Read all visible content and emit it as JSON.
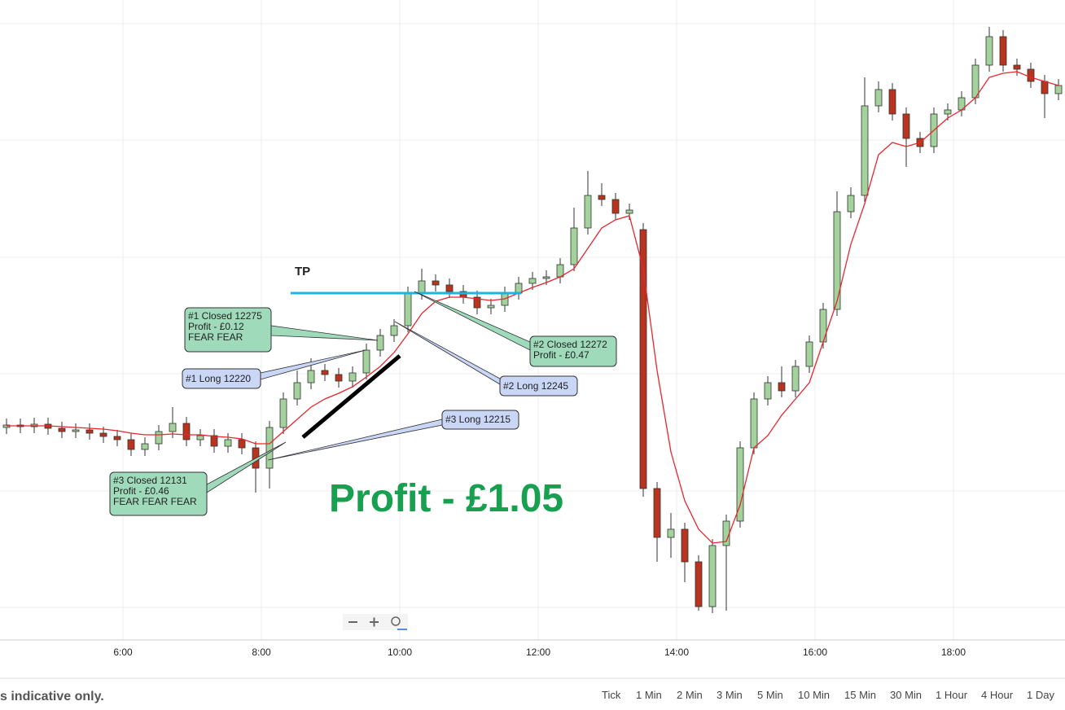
{
  "chart_data": {
    "type": "candlestick",
    "ylim": [
      0,
      785
    ],
    "time_labels": [
      "6:00",
      "8:00",
      "10:00",
      "12:00",
      "14:00",
      "16:00",
      "18:00"
    ],
    "open": [
      260,
      263,
      261,
      264,
      259,
      255,
      257,
      253,
      249,
      245,
      233,
      240,
      255,
      265,
      245,
      250,
      237,
      245,
      235,
      210,
      260,
      295,
      315,
      330,
      325,
      317,
      327,
      355,
      373,
      385,
      425,
      440,
      435,
      427,
      420,
      407,
      410,
      425,
      437,
      443,
      445,
      460,
      505,
      545,
      540,
      523,
      503,
      185,
      125,
      135,
      95,
      40,
      115,
      145,
      235,
      295,
      315,
      305,
      335,
      365,
      405,
      525,
      545,
      655,
      675,
      645,
      615,
      605,
      645,
      650,
      665,
      705,
      740,
      705,
      700,
      685,
      670
    ],
    "high": [
      271,
      271,
      272,
      272,
      267,
      265,
      265,
      261,
      257,
      253,
      248,
      263,
      285,
      273,
      258,
      258,
      253,
      253,
      243,
      268,
      303,
      330,
      345,
      338,
      333,
      335,
      363,
      381,
      393,
      433,
      455,
      448,
      443,
      435,
      428,
      418,
      433,
      445,
      451,
      453,
      468,
      530,
      575,
      560,
      548,
      535,
      511,
      193,
      155,
      143,
      103,
      123,
      153,
      243,
      303,
      323,
      335,
      343,
      373,
      413,
      550,
      555,
      690,
      685,
      683,
      653,
      623,
      653,
      658,
      673,
      713,
      752,
      748,
      713,
      708,
      693,
      688
    ],
    "low": [
      252,
      253,
      253,
      251,
      247,
      247,
      245,
      241,
      237,
      225,
      225,
      232,
      247,
      237,
      237,
      229,
      229,
      227,
      180,
      185,
      252,
      287,
      307,
      317,
      309,
      309,
      319,
      347,
      365,
      377,
      417,
      427,
      419,
      412,
      399,
      399,
      402,
      417,
      429,
      435,
      437,
      452,
      497,
      532,
      515,
      515,
      175,
      95,
      100,
      70,
      35,
      32,
      35,
      137,
      227,
      287,
      297,
      297,
      327,
      357,
      397,
      517,
      537,
      647,
      637,
      580,
      597,
      597,
      637,
      642,
      657,
      697,
      697,
      692,
      677,
      640,
      662
    ],
    "close": [
      263,
      261,
      264,
      259,
      255,
      257,
      253,
      249,
      245,
      233,
      240,
      255,
      265,
      245,
      250,
      237,
      245,
      235,
      210,
      260,
      295,
      315,
      330,
      325,
      317,
      327,
      355,
      373,
      385,
      425,
      440,
      435,
      427,
      420,
      407,
      410,
      425,
      437,
      443,
      445,
      460,
      505,
      545,
      540,
      523,
      527,
      185,
      125,
      135,
      95,
      40,
      115,
      145,
      235,
      295,
      315,
      305,
      335,
      365,
      405,
      525,
      545,
      655,
      675,
      645,
      615,
      605,
      645,
      650,
      665,
      705,
      740,
      705,
      700,
      685,
      670,
      680
    ],
    "moving_average": [
      262,
      262,
      262,
      262,
      261,
      260,
      259,
      258,
      256,
      253,
      251,
      251,
      252,
      251,
      251,
      249,
      248,
      246,
      240,
      240,
      255,
      270,
      285,
      295,
      302,
      310,
      322,
      335,
      352,
      375,
      400,
      415,
      420,
      420,
      418,
      416,
      418,
      425,
      432,
      438,
      445,
      455,
      480,
      505,
      515,
      520,
      455,
      330,
      230,
      170,
      135,
      118,
      120,
      165,
      235,
      250,
      275,
      295,
      315,
      365,
      415,
      485,
      535,
      595,
      610,
      605,
      610,
      625,
      640,
      650,
      665,
      690,
      695,
      697,
      690,
      685,
      680
    ],
    "up_color": "#a3d29c",
    "down_color": "#b8341f",
    "ma_color": "#e8262b",
    "annotations": {
      "tp": "TP",
      "trade1_closed": [
        "#1 Closed 12275",
        "Profit - £0.12",
        "FEAR FEAR"
      ],
      "trade1_long": "#1 Long 12220",
      "trade2_closed": [
        "#2 Closed 12272",
        "Profit - £0.47"
      ],
      "trade2_long": "#2 Long 12245",
      "trade3_long": "#3 Long 12215",
      "trade3_closed": [
        "#3 Closed 12131",
        "Profit - £0.46",
        "FEAR FEAR FEAR"
      ],
      "total": "Profit - £1.05"
    }
  },
  "footer": {
    "disclaimer": "s indicative only.",
    "timeframes": [
      "Tick",
      "1 Min",
      "2 Min",
      "3 Min",
      "5 Min",
      "10 Min",
      "15 Min",
      "30 Min",
      "1 Hour",
      "4 Hour",
      "1 Day"
    ]
  }
}
